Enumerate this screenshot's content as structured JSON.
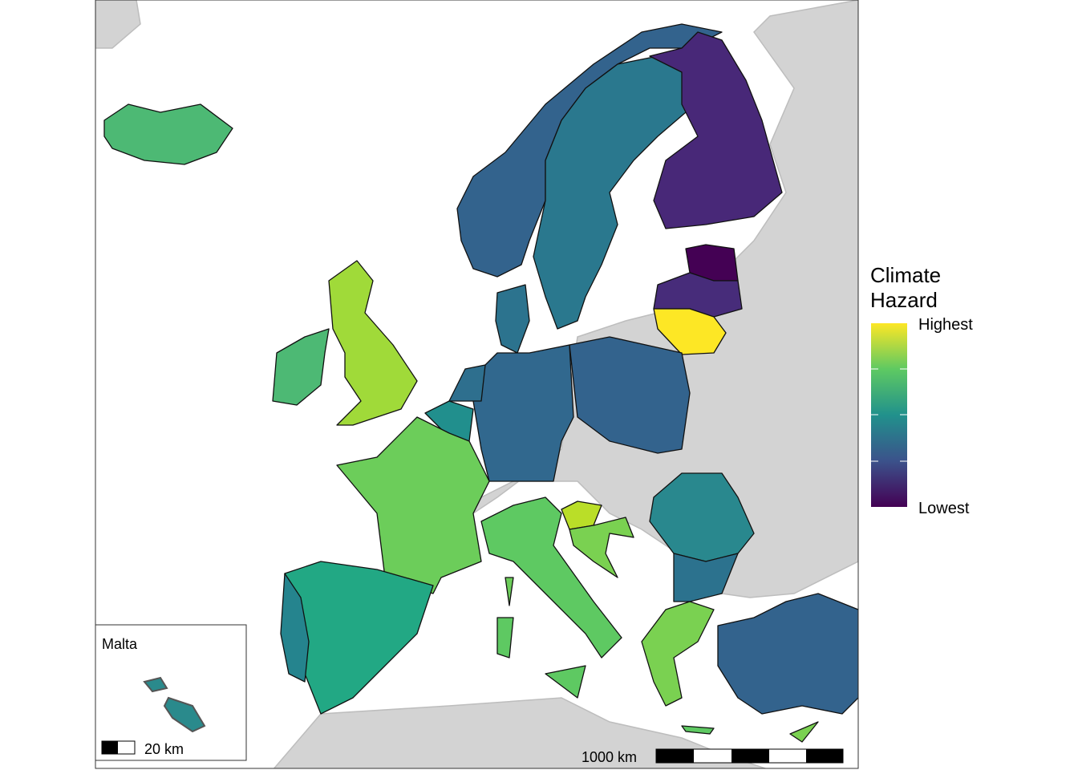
{
  "legend": {
    "title": [
      "Climate",
      "Hazard"
    ],
    "high": "Highest",
    "low": "Lowest"
  },
  "inset": {
    "title": "Malta",
    "scale": "20 km"
  },
  "scale_bar": "1000 km"
}
